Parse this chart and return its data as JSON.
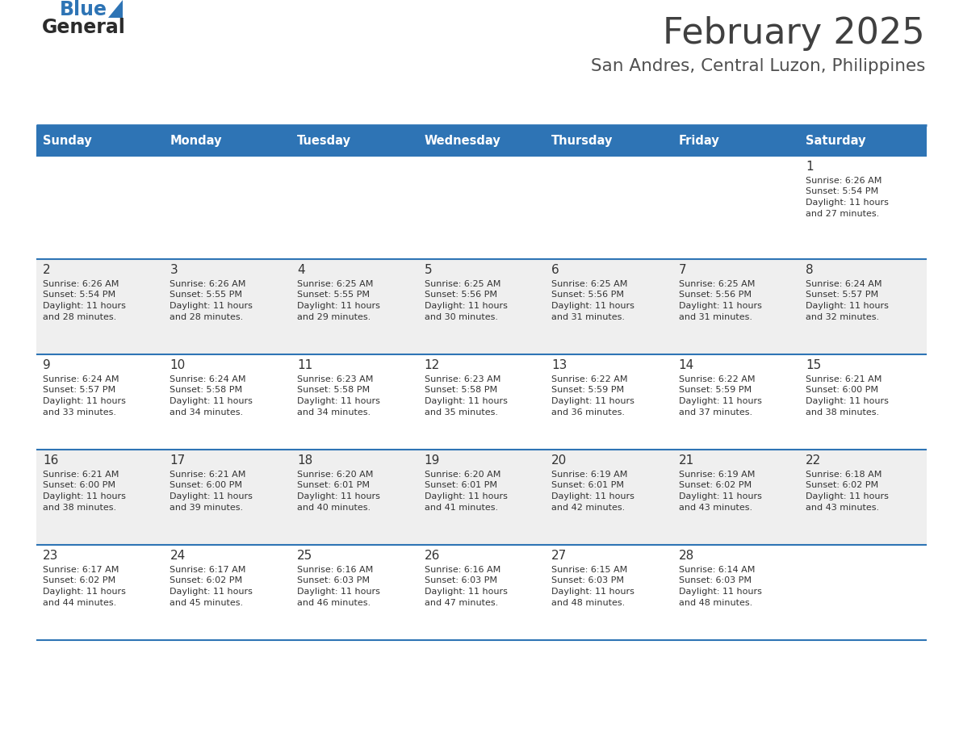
{
  "title": "February 2025",
  "subtitle": "San Andres, Central Luzon, Philippines",
  "header_bg": "#2E74B5",
  "header_text": "#FFFFFF",
  "odd_row_bg": "#FFFFFF",
  "even_row_bg": "#EFEFEF",
  "separator_color": "#2E74B5",
  "title_color": "#404040",
  "subtitle_color": "#505050",
  "days_of_week": [
    "Sunday",
    "Monday",
    "Tuesday",
    "Wednesday",
    "Thursday",
    "Friday",
    "Saturday"
  ],
  "calendar": [
    [
      {
        "day": "",
        "sunrise": "",
        "sunset": "",
        "daylight": ""
      },
      {
        "day": "",
        "sunrise": "",
        "sunset": "",
        "daylight": ""
      },
      {
        "day": "",
        "sunrise": "",
        "sunset": "",
        "daylight": ""
      },
      {
        "day": "",
        "sunrise": "",
        "sunset": "",
        "daylight": ""
      },
      {
        "day": "",
        "sunrise": "",
        "sunset": "",
        "daylight": ""
      },
      {
        "day": "",
        "sunrise": "",
        "sunset": "",
        "daylight": ""
      },
      {
        "day": "1",
        "sunrise": "6:26 AM",
        "sunset": "5:54 PM",
        "daylight": "11 hours and 27 minutes."
      }
    ],
    [
      {
        "day": "2",
        "sunrise": "6:26 AM",
        "sunset": "5:54 PM",
        "daylight": "11 hours and 28 minutes."
      },
      {
        "day": "3",
        "sunrise": "6:26 AM",
        "sunset": "5:55 PM",
        "daylight": "11 hours and 28 minutes."
      },
      {
        "day": "4",
        "sunrise": "6:25 AM",
        "sunset": "5:55 PM",
        "daylight": "11 hours and 29 minutes."
      },
      {
        "day": "5",
        "sunrise": "6:25 AM",
        "sunset": "5:56 PM",
        "daylight": "11 hours and 30 minutes."
      },
      {
        "day": "6",
        "sunrise": "6:25 AM",
        "sunset": "5:56 PM",
        "daylight": "11 hours and 31 minutes."
      },
      {
        "day": "7",
        "sunrise": "6:25 AM",
        "sunset": "5:56 PM",
        "daylight": "11 hours and 31 minutes."
      },
      {
        "day": "8",
        "sunrise": "6:24 AM",
        "sunset": "5:57 PM",
        "daylight": "11 hours and 32 minutes."
      }
    ],
    [
      {
        "day": "9",
        "sunrise": "6:24 AM",
        "sunset": "5:57 PM",
        "daylight": "11 hours and 33 minutes."
      },
      {
        "day": "10",
        "sunrise": "6:24 AM",
        "sunset": "5:58 PM",
        "daylight": "11 hours and 34 minutes."
      },
      {
        "day": "11",
        "sunrise": "6:23 AM",
        "sunset": "5:58 PM",
        "daylight": "11 hours and 34 minutes."
      },
      {
        "day": "12",
        "sunrise": "6:23 AM",
        "sunset": "5:58 PM",
        "daylight": "11 hours and 35 minutes."
      },
      {
        "day": "13",
        "sunrise": "6:22 AM",
        "sunset": "5:59 PM",
        "daylight": "11 hours and 36 minutes."
      },
      {
        "day": "14",
        "sunrise": "6:22 AM",
        "sunset": "5:59 PM",
        "daylight": "11 hours and 37 minutes."
      },
      {
        "day": "15",
        "sunrise": "6:21 AM",
        "sunset": "6:00 PM",
        "daylight": "11 hours and 38 minutes."
      }
    ],
    [
      {
        "day": "16",
        "sunrise": "6:21 AM",
        "sunset": "6:00 PM",
        "daylight": "11 hours and 38 minutes."
      },
      {
        "day": "17",
        "sunrise": "6:21 AM",
        "sunset": "6:00 PM",
        "daylight": "11 hours and 39 minutes."
      },
      {
        "day": "18",
        "sunrise": "6:20 AM",
        "sunset": "6:01 PM",
        "daylight": "11 hours and 40 minutes."
      },
      {
        "day": "19",
        "sunrise": "6:20 AM",
        "sunset": "6:01 PM",
        "daylight": "11 hours and 41 minutes."
      },
      {
        "day": "20",
        "sunrise": "6:19 AM",
        "sunset": "6:01 PM",
        "daylight": "11 hours and 42 minutes."
      },
      {
        "day": "21",
        "sunrise": "6:19 AM",
        "sunset": "6:02 PM",
        "daylight": "11 hours and 43 minutes."
      },
      {
        "day": "22",
        "sunrise": "6:18 AM",
        "sunset": "6:02 PM",
        "daylight": "11 hours and 43 minutes."
      }
    ],
    [
      {
        "day": "23",
        "sunrise": "6:17 AM",
        "sunset": "6:02 PM",
        "daylight": "11 hours and 44 minutes."
      },
      {
        "day": "24",
        "sunrise": "6:17 AM",
        "sunset": "6:02 PM",
        "daylight": "11 hours and 45 minutes."
      },
      {
        "day": "25",
        "sunrise": "6:16 AM",
        "sunset": "6:03 PM",
        "daylight": "11 hours and 46 minutes."
      },
      {
        "day": "26",
        "sunrise": "6:16 AM",
        "sunset": "6:03 PM",
        "daylight": "11 hours and 47 minutes."
      },
      {
        "day": "27",
        "sunrise": "6:15 AM",
        "sunset": "6:03 PM",
        "daylight": "11 hours and 48 minutes."
      },
      {
        "day": "28",
        "sunrise": "6:14 AM",
        "sunset": "6:03 PM",
        "daylight": "11 hours and 48 minutes."
      },
      {
        "day": "",
        "sunrise": "",
        "sunset": "",
        "daylight": ""
      }
    ]
  ]
}
